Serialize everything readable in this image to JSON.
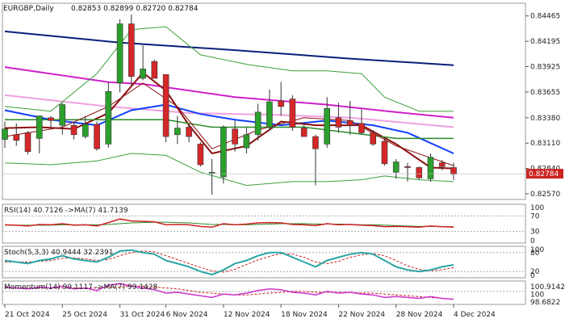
{
  "header": {
    "symbol": "EURGBP,Daily",
    "ohlc": "0.82853 0.82899 0.82720 0.82784"
  },
  "colors": {
    "bull": "#2ca02c",
    "bear": "#d62728",
    "ma_dark_blue": "#0b1f7a",
    "ma_magenta": "#d020c8",
    "ma_pink": "#f0a0e0",
    "ma_blue": "#1040ff",
    "ma_darkred": "#8b1010",
    "ma_green": "#2a8a2a",
    "bollinger": "#3aa03a",
    "stoch_main": "#2aa5a5",
    "signal": "#cc2222",
    "momentum": "#cc33cc",
    "price_box": "#cc2222"
  },
  "chart_data": {
    "type": "candlestick",
    "title": "EURGBP,Daily",
    "price_axis": {
      "ylim": [
        0.8251,
        0.846
      ],
      "ticks": [
        0.84465,
        0.84195,
        0.83925,
        0.83655,
        0.8338,
        0.8311,
        0.8284,
        0.8257
      ],
      "tick_labels": [
        "0.84465",
        "0.84195",
        "0.83925",
        "0.83655",
        "0.83380",
        "0.83110",
        "0.82840",
        "0.82570"
      ],
      "current_price": 0.82784,
      "current_label": "0.82784"
    },
    "x_labels": [
      {
        "label": "21 Oct 2024",
        "index": 0
      },
      {
        "label": "25 Oct 2024",
        "index": 5
      },
      {
        "label": "31 Oct 2024",
        "index": 10
      },
      {
        "label": "6 Nov 2024",
        "index": 14
      },
      {
        "label": "12 Nov 2024",
        "index": 19
      },
      {
        "label": "18 Nov 2024",
        "index": 24
      },
      {
        "label": "22 Nov 2024",
        "index": 29
      },
      {
        "label": "28 Nov 2024",
        "index": 34
      },
      {
        "label": "4 Dec 2024",
        "index": 39
      }
    ],
    "candles": [
      {
        "o": 0.8315,
        "h": 0.8334,
        "l": 0.8306,
        "c": 0.8326
      },
      {
        "o": 0.832,
        "h": 0.8332,
        "l": 0.8308,
        "c": 0.8314
      },
      {
        "o": 0.8322,
        "h": 0.8324,
        "l": 0.8299,
        "c": 0.8302
      },
      {
        "o": 0.8316,
        "h": 0.834,
        "l": 0.83,
        "c": 0.834
      },
      {
        "o": 0.8338,
        "h": 0.834,
        "l": 0.8328,
        "c": 0.8335
      },
      {
        "o": 0.833,
        "h": 0.8354,
        "l": 0.832,
        "c": 0.8352
      },
      {
        "o": 0.833,
        "h": 0.8333,
        "l": 0.8315,
        "c": 0.832
      },
      {
        "o": 0.8318,
        "h": 0.834,
        "l": 0.8316,
        "c": 0.8331
      },
      {
        "o": 0.8331,
        "h": 0.8334,
        "l": 0.8303,
        "c": 0.8305
      },
      {
        "o": 0.831,
        "h": 0.8376,
        "l": 0.8306,
        "c": 0.8366
      },
      {
        "o": 0.8375,
        "h": 0.8443,
        "l": 0.8365,
        "c": 0.8438
      },
      {
        "o": 0.8438,
        "h": 0.8448,
        "l": 0.8372,
        "c": 0.8382
      },
      {
        "o": 0.838,
        "h": 0.8415,
        "l": 0.8378,
        "c": 0.839
      },
      {
        "o": 0.8398,
        "h": 0.84,
        "l": 0.838,
        "c": 0.838
      },
      {
        "o": 0.8384,
        "h": 0.8384,
        "l": 0.8312,
        "c": 0.8318
      },
      {
        "o": 0.832,
        "h": 0.834,
        "l": 0.831,
        "c": 0.8327
      },
      {
        "o": 0.8328,
        "h": 0.833,
        "l": 0.8312,
        "c": 0.8318
      },
      {
        "o": 0.831,
        "h": 0.8312,
        "l": 0.8286,
        "c": 0.8288
      },
      {
        "o": 0.828,
        "h": 0.8294,
        "l": 0.8256,
        "c": 0.828
      },
      {
        "o": 0.8275,
        "h": 0.833,
        "l": 0.8268,
        "c": 0.8328
      },
      {
        "o": 0.8326,
        "h": 0.8335,
        "l": 0.8302,
        "c": 0.831
      },
      {
        "o": 0.8306,
        "h": 0.8328,
        "l": 0.83,
        "c": 0.832
      },
      {
        "o": 0.832,
        "h": 0.8353,
        "l": 0.8314,
        "c": 0.8344
      },
      {
        "o": 0.8328,
        "h": 0.8368,
        "l": 0.8324,
        "c": 0.8355
      },
      {
        "o": 0.8356,
        "h": 0.8376,
        "l": 0.834,
        "c": 0.835
      },
      {
        "o": 0.8358,
        "h": 0.8362,
        "l": 0.8324,
        "c": 0.8328
      },
      {
        "o": 0.8327,
        "h": 0.8333,
        "l": 0.8318,
        "c": 0.8318
      },
      {
        "o": 0.8318,
        "h": 0.832,
        "l": 0.8266,
        "c": 0.8305
      },
      {
        "o": 0.831,
        "h": 0.836,
        "l": 0.8306,
        "c": 0.8348
      },
      {
        "o": 0.8338,
        "h": 0.8354,
        "l": 0.8322,
        "c": 0.8328
      },
      {
        "o": 0.8335,
        "h": 0.8356,
        "l": 0.832,
        "c": 0.833
      },
      {
        "o": 0.8332,
        "h": 0.8347,
        "l": 0.832,
        "c": 0.8322
      },
      {
        "o": 0.8322,
        "h": 0.8325,
        "l": 0.8308,
        "c": 0.831
      },
      {
        "o": 0.8313,
        "h": 0.8316,
        "l": 0.8287,
        "c": 0.8289
      },
      {
        "o": 0.828,
        "h": 0.8294,
        "l": 0.8273,
        "c": 0.8291
      },
      {
        "o": 0.8286,
        "h": 0.829,
        "l": 0.827,
        "c": 0.8285
      },
      {
        "o": 0.8285,
        "h": 0.8286,
        "l": 0.8272,
        "c": 0.8274
      },
      {
        "o": 0.8273,
        "h": 0.83,
        "l": 0.827,
        "c": 0.8296
      },
      {
        "o": 0.829,
        "h": 0.8293,
        "l": 0.8282,
        "c": 0.8286
      },
      {
        "o": 0.8285,
        "h": 0.829,
        "l": 0.8272,
        "c": 0.8278
      }
    ],
    "moving_averages": [
      {
        "key": "ma_dark_blue",
        "width": 2,
        "points": [
          [
            0,
            0.843
          ],
          [
            10,
            0.8418
          ],
          [
            20,
            0.841
          ],
          [
            30,
            0.8401
          ],
          [
            39,
            0.8394
          ]
        ]
      },
      {
        "key": "ma_magenta",
        "width": 2,
        "points": [
          [
            0,
            0.8392
          ],
          [
            9,
            0.8376
          ],
          [
            12,
            0.8374
          ],
          [
            20,
            0.836
          ],
          [
            28,
            0.8352
          ],
          [
            34,
            0.8344
          ],
          [
            39,
            0.8338
          ]
        ]
      },
      {
        "key": "ma_pink",
        "width": 2,
        "points": [
          [
            0,
            0.8362
          ],
          [
            9,
            0.835
          ],
          [
            16,
            0.8343
          ],
          [
            24,
            0.8341
          ],
          [
            30,
            0.8338
          ],
          [
            39,
            0.8328
          ]
        ]
      },
      {
        "key": "ma_blue",
        "width": 2,
        "points": [
          [
            0,
            0.8346
          ],
          [
            4,
            0.8336
          ],
          [
            8,
            0.833
          ],
          [
            11,
            0.8346
          ],
          [
            14,
            0.8352
          ],
          [
            17,
            0.8342
          ],
          [
            20,
            0.8336
          ],
          [
            24,
            0.833
          ],
          [
            28,
            0.8335
          ],
          [
            32,
            0.833
          ],
          [
            35,
            0.8322
          ],
          [
            39,
            0.83
          ]
        ]
      },
      {
        "key": "ma_darkred",
        "width": 2,
        "points": [
          [
            0,
            0.8327
          ],
          [
            3,
            0.8328
          ],
          [
            6,
            0.8326
          ],
          [
            9,
            0.8343
          ],
          [
            12,
            0.8386
          ],
          [
            14,
            0.8367
          ],
          [
            16,
            0.833
          ],
          [
            18,
            0.83
          ],
          [
            21,
            0.8308
          ],
          [
            24,
            0.8334
          ],
          [
            27,
            0.833
          ],
          [
            31,
            0.833
          ],
          [
            34,
            0.831
          ],
          [
            37,
            0.8285
          ],
          [
            39,
            0.8284
          ]
        ]
      },
      {
        "key": "ma_green",
        "width": 1.5,
        "points": [
          [
            0,
            0.8336
          ],
          [
            14,
            0.8336
          ],
          [
            18,
            0.8328
          ],
          [
            26,
            0.8328
          ],
          [
            34,
            0.8316
          ],
          [
            39,
            0.8316
          ]
        ]
      },
      {
        "key": "bollinger",
        "width": 1,
        "points": [
          [
            0,
            0.835
          ],
          [
            4,
            0.8345
          ],
          [
            8,
            0.8385
          ],
          [
            11,
            0.8432
          ],
          [
            14,
            0.8435
          ],
          [
            17,
            0.8405
          ],
          [
            21,
            0.8395
          ],
          [
            25,
            0.8388
          ],
          [
            28,
            0.8388
          ],
          [
            31,
            0.8385
          ],
          [
            33,
            0.836
          ],
          [
            36,
            0.8345
          ],
          [
            39,
            0.8345
          ]
        ]
      },
      {
        "key": "bollinger",
        "width": 1,
        "points": [
          [
            0,
            0.829
          ],
          [
            4,
            0.8288
          ],
          [
            8,
            0.8292
          ],
          [
            11,
            0.83
          ],
          [
            14,
            0.8298
          ],
          [
            17,
            0.828
          ],
          [
            21,
            0.8266
          ],
          [
            25,
            0.827
          ],
          [
            28,
            0.827
          ],
          [
            31,
            0.8272
          ],
          [
            33,
            0.8276
          ],
          [
            36,
            0.8272
          ],
          [
            39,
            0.827
          ]
        ]
      },
      {
        "key": "ma_darkred",
        "width": 1,
        "points": [
          [
            0,
            0.8318
          ],
          [
            5,
            0.8328
          ],
          [
            9,
            0.835
          ],
          [
            12,
            0.8375
          ],
          [
            15,
            0.835
          ],
          [
            18,
            0.8305
          ],
          [
            22,
            0.8325
          ],
          [
            26,
            0.8338
          ],
          [
            30,
            0.8335
          ],
          [
            34,
            0.8308
          ],
          [
            39,
            0.8287
          ]
        ]
      }
    ],
    "rsi": {
      "label": "RSI(14) 40.7126 ->MA(7) 41.7139",
      "ylim": [
        0,
        100
      ],
      "levels": [
        70,
        30
      ],
      "tick_labels": [
        "100",
        "70",
        "30",
        "0"
      ],
      "values": [
        47,
        46,
        44,
        48,
        47,
        50,
        46,
        47,
        44,
        53,
        62,
        57,
        56,
        55,
        47,
        48,
        47,
        43,
        41,
        50,
        47,
        49,
        52,
        53,
        52,
        48,
        47,
        45,
        50,
        47,
        48,
        46,
        45,
        42,
        43,
        42,
        41,
        44,
        42,
        41
      ],
      "ma": [
        46,
        46,
        46,
        46,
        46,
        47,
        47,
        47,
        47,
        48,
        50,
        52,
        53,
        54,
        54,
        53,
        52,
        50,
        48,
        48,
        47,
        47,
        48,
        49,
        50,
        50,
        50,
        49,
        49,
        49,
        48,
        47,
        47,
        46,
        45,
        44,
        43,
        43,
        42,
        42
      ]
    },
    "stoch": {
      "label": "Stoch(5,3,3) 40.9444 32.2391",
      "ylim": [
        0,
        100
      ],
      "levels": [
        80,
        20
      ],
      "tick_labels": [
        "100",
        "80",
        "20",
        "0"
      ],
      "k": [
        55,
        50,
        45,
        55,
        60,
        70,
        60,
        55,
        50,
        65,
        85,
        88,
        80,
        75,
        55,
        45,
        35,
        20,
        10,
        25,
        45,
        55,
        70,
        80,
        80,
        65,
        50,
        35,
        55,
        65,
        75,
        80,
        75,
        55,
        35,
        25,
        20,
        25,
        35,
        41
      ],
      "d": [
        50,
        50,
        50,
        52,
        55,
        62,
        63,
        60,
        55,
        58,
        70,
        80,
        85,
        82,
        70,
        58,
        45,
        33,
        22,
        18,
        27,
        42,
        57,
        68,
        77,
        75,
        65,
        50,
        45,
        52,
        65,
        73,
        77,
        70,
        55,
        38,
        27,
        22,
        26,
        32
      ]
    },
    "momentum": {
      "label": "Momentum(14) 99.1117 ->MA(7) 99.1428",
      "tick_labels": [
        "100.9142",
        "100",
        "98.6822"
      ],
      "ylim": [
        98.5,
        101.2
      ],
      "levels": [
        100
      ],
      "values": [
        100.5,
        100.4,
        100.3,
        100.5,
        100.4,
        100.6,
        100.3,
        100.4,
        100.1,
        100.7,
        100.9,
        100.6,
        100.4,
        100.2,
        99.8,
        99.9,
        99.7,
        99.5,
        99.3,
        99.7,
        99.6,
        99.8,
        100.1,
        100.3,
        100.2,
        99.9,
        99.8,
        99.6,
        100.0,
        99.8,
        99.9,
        99.7,
        99.6,
        99.3,
        99.4,
        99.3,
        99.2,
        99.4,
        99.2,
        99.1
      ],
      "ma": [
        100.4,
        100.4,
        100.4,
        100.4,
        100.4,
        100.4,
        100.4,
        100.4,
        100.4,
        100.5,
        100.5,
        100.6,
        100.6,
        100.5,
        100.4,
        100.3,
        100.1,
        99.9,
        99.8,
        99.7,
        99.6,
        99.6,
        99.7,
        99.8,
        99.9,
        100.0,
        100.0,
        99.9,
        99.9,
        99.9,
        99.9,
        99.8,
        99.8,
        99.7,
        99.6,
        99.5,
        99.4,
        99.3,
        99.2,
        99.1
      ]
    }
  }
}
